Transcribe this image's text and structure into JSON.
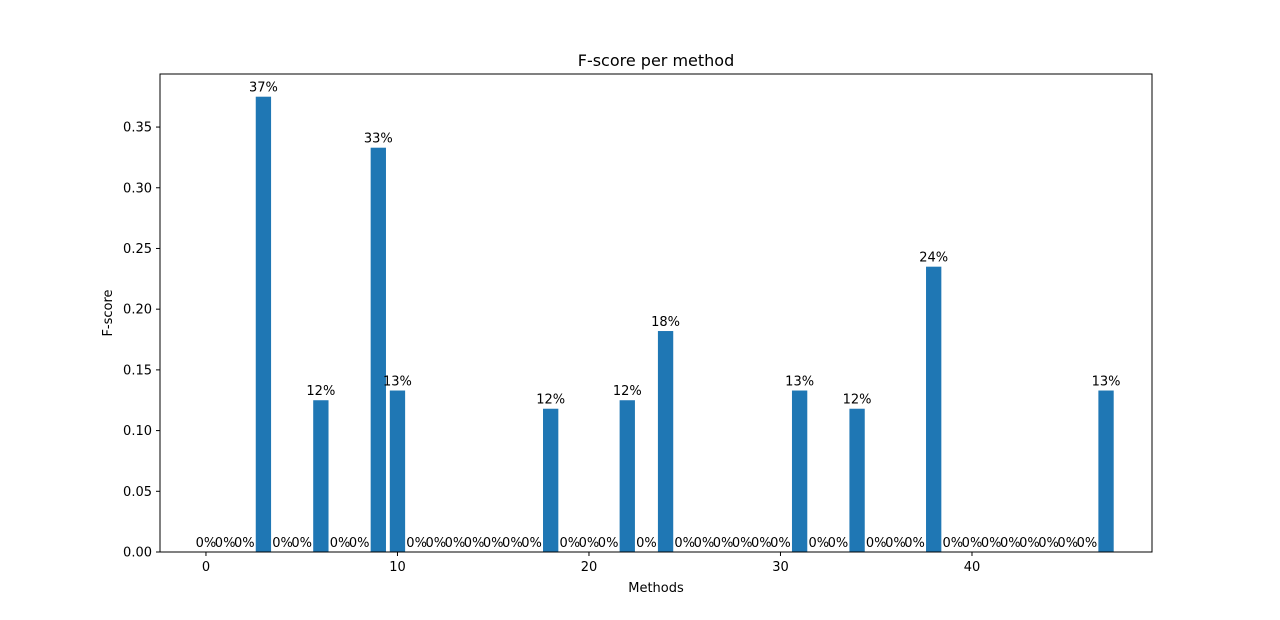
{
  "chart_data": {
    "type": "bar",
    "title": "F-score per method",
    "xlabel": "Methods",
    "ylabel": "F-score",
    "xlim": [
      -2.4,
      49.4
    ],
    "ylim": [
      0,
      0.3937
    ],
    "xticks": [
      0,
      10,
      20,
      30,
      40
    ],
    "yticks": [
      0.0,
      0.05,
      0.1,
      0.15,
      0.2,
      0.25,
      0.3,
      0.35
    ],
    "ytick_labels": [
      "0.00",
      "0.05",
      "0.10",
      "0.15",
      "0.20",
      "0.25",
      "0.30",
      "0.35"
    ],
    "grid": false,
    "bar_color": "#1f77b4",
    "x": [
      0,
      1,
      2,
      3,
      4,
      5,
      6,
      7,
      8,
      9,
      10,
      11,
      12,
      13,
      14,
      15,
      16,
      17,
      18,
      19,
      20,
      21,
      22,
      23,
      24,
      25,
      26,
      27,
      28,
      29,
      30,
      31,
      32,
      33,
      34,
      35,
      36,
      37,
      38,
      39,
      40,
      41,
      42,
      43,
      44,
      45,
      46,
      47
    ],
    "values": [
      0,
      0,
      0,
      0.375,
      0,
      0,
      0.125,
      0,
      0,
      0.333,
      0.133,
      0,
      0,
      0,
      0,
      0,
      0,
      0,
      0.118,
      0,
      0,
      0,
      0.125,
      0,
      0.182,
      0,
      0,
      0,
      0,
      0,
      0,
      0.133,
      0,
      0,
      0.118,
      0,
      0,
      0,
      0.235,
      0,
      0,
      0,
      0,
      0,
      0,
      0,
      0,
      0.133
    ],
    "labels": [
      "0%",
      "0%",
      "0%",
      "37%",
      "0%",
      "0%",
      "12%",
      "0%",
      "0%",
      "33%",
      "13%",
      "0%",
      "0%",
      "0%",
      "0%",
      "0%",
      "0%",
      "0%",
      "12%",
      "0%",
      "0%",
      "0%",
      "12%",
      "0%",
      "18%",
      "0%",
      "0%",
      "0%",
      "0%",
      "0%",
      "0%",
      "13%",
      "0%",
      "0%",
      "12%",
      "0%",
      "0%",
      "0%",
      "24%",
      "0%",
      "0%",
      "0%",
      "0%",
      "0%",
      "0%",
      "0%",
      "0%",
      "13%"
    ]
  }
}
